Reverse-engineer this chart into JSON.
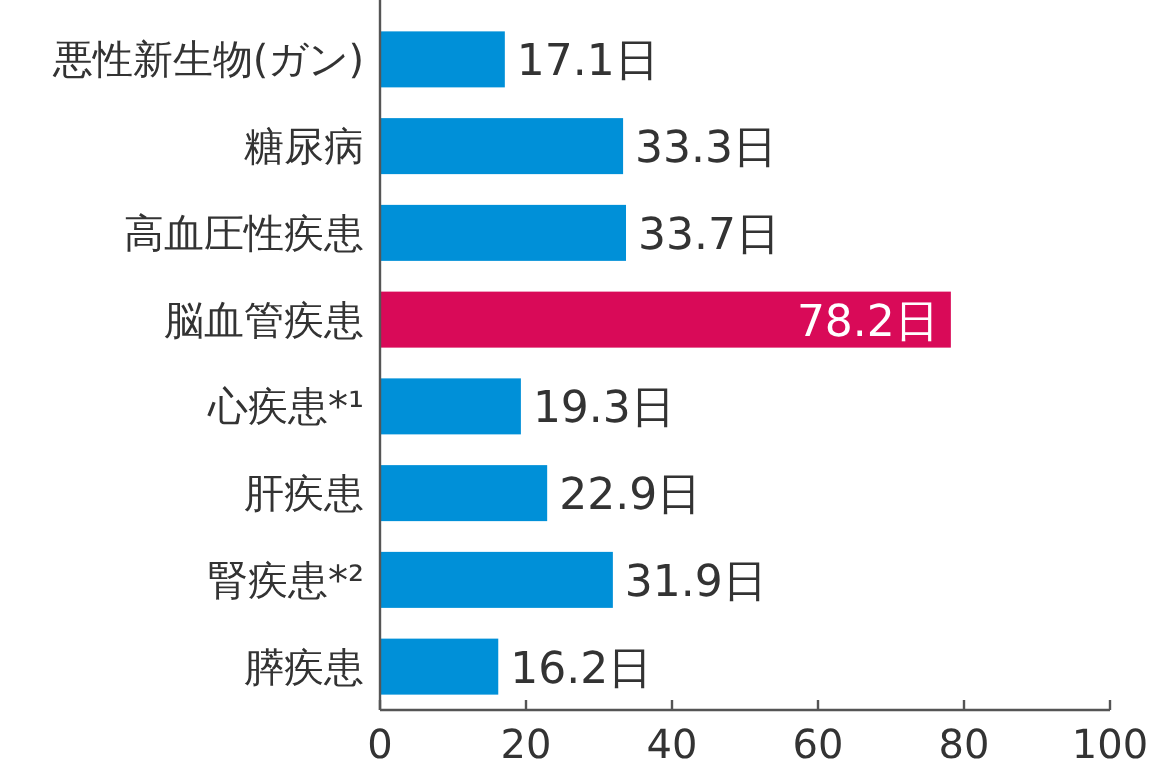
{
  "chart_data": {
    "type": "bar",
    "orientation": "horizontal",
    "categories": [
      "悪性新生物(ガン)",
      "糖尿病",
      "高血圧性疾患",
      "脳血管疾患",
      "心疾患*¹",
      "肝疾患",
      "腎疾患*²",
      "膵疾患"
    ],
    "values": [
      17.1,
      33.3,
      33.7,
      78.2,
      19.3,
      22.9,
      31.9,
      16.2
    ],
    "colors": [
      "#0090d8",
      "#0090d8",
      "#0090d8",
      "#d90a58",
      "#0090d8",
      "#0090d8",
      "#0090d8",
      "#0090d8"
    ],
    "value_labels": [
      "17.1日",
      "33.3日",
      "33.7日",
      "78.2日",
      "19.3日",
      "22.9日",
      "31.9日",
      "16.2日"
    ],
    "xlim": [
      0,
      100
    ],
    "xticks": [
      0,
      20,
      40,
      60,
      80,
      100
    ]
  }
}
